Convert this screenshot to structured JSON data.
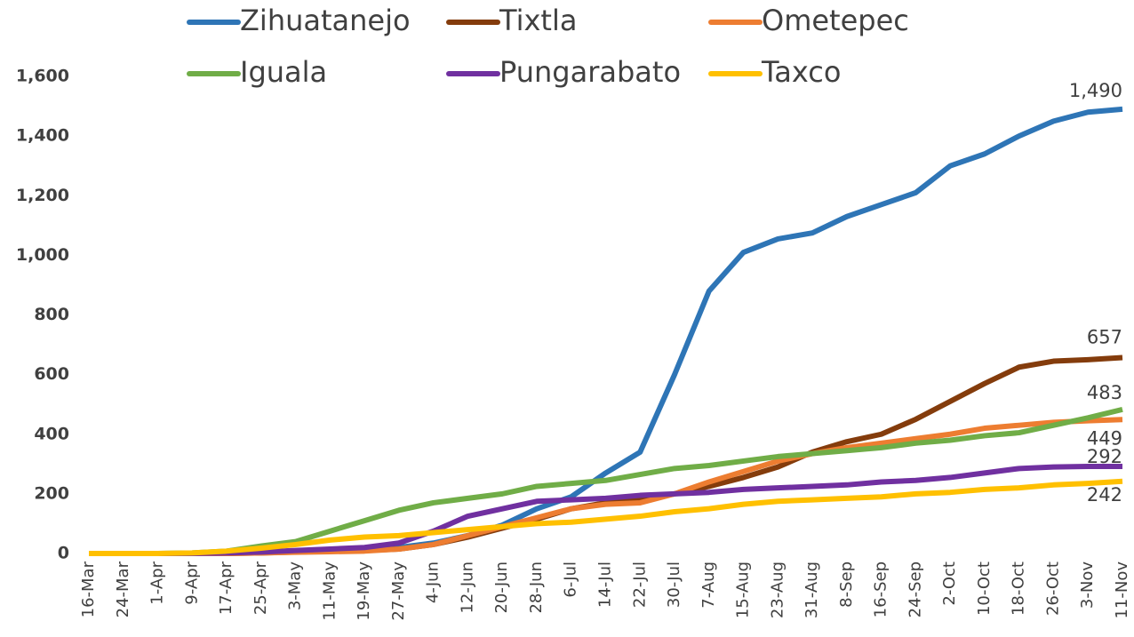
{
  "chart_data": {
    "type": "line",
    "categories": [
      "16-Mar",
      "24-Mar",
      "1-Apr",
      "9-Apr",
      "17-Apr",
      "25-Apr",
      "3-May",
      "11-May",
      "19-May",
      "27-May",
      "4-Jun",
      "12-Jun",
      "20-Jun",
      "28-Jun",
      "6-Jul",
      "14-Jul",
      "22-Jul",
      "30-Jul",
      "7-Aug",
      "15-Aug",
      "23-Aug",
      "31-Aug",
      "8-Sep",
      "16-Sep",
      "24-Sep",
      "2-Oct",
      "10-Oct",
      "18-Oct",
      "26-Oct",
      "3-Nov",
      "11-Nov"
    ],
    "series": [
      {
        "name": "Zihuatanejo",
        "color": "#2e75b6",
        "values": [
          0,
          0,
          0,
          0,
          2,
          5,
          8,
          10,
          15,
          20,
          35,
          60,
          95,
          150,
          190,
          270,
          340,
          600,
          880,
          1010,
          1055,
          1075,
          1130,
          1170,
          1210,
          1300,
          1340,
          1400,
          1450,
          1480,
          1490
        ],
        "value_labels": [
          null,
          null,
          null,
          null,
          null,
          null,
          null,
          null,
          null,
          null,
          null,
          null,
          null,
          null,
          null,
          null,
          null,
          null,
          null,
          null,
          null,
          null,
          null,
          null,
          null,
          null,
          null,
          null,
          null,
          null,
          "1,490"
        ]
      },
      {
        "name": "Tixtla",
        "color": "#843c0c",
        "values": [
          0,
          0,
          0,
          0,
          0,
          2,
          5,
          8,
          10,
          15,
          30,
          55,
          85,
          115,
          150,
          170,
          180,
          200,
          225,
          255,
          290,
          340,
          375,
          400,
          450,
          510,
          570,
          625,
          645,
          650,
          657
        ],
        "value_labels": [
          null,
          null,
          null,
          null,
          null,
          null,
          null,
          null,
          null,
          null,
          null,
          null,
          null,
          null,
          null,
          null,
          null,
          null,
          null,
          null,
          null,
          null,
          null,
          null,
          null,
          null,
          null,
          null,
          null,
          null,
          "657"
        ]
      },
      {
        "name": "Ometepec",
        "color": "#ed7d31",
        "values": [
          0,
          0,
          0,
          0,
          0,
          2,
          4,
          6,
          8,
          15,
          30,
          60,
          90,
          120,
          150,
          165,
          170,
          200,
          240,
          275,
          310,
          335,
          355,
          370,
          385,
          400,
          420,
          430,
          440,
          445,
          449
        ],
        "value_labels": [
          null,
          null,
          null,
          null,
          null,
          null,
          null,
          null,
          null,
          null,
          null,
          null,
          null,
          null,
          null,
          null,
          null,
          null,
          null,
          null,
          null,
          null,
          null,
          null,
          null,
          null,
          null,
          null,
          null,
          null,
          "449"
        ]
      },
      {
        "name": "Iguala",
        "color": "#70ad47",
        "values": [
          0,
          0,
          0,
          2,
          8,
          25,
          40,
          75,
          110,
          145,
          170,
          185,
          200,
          225,
          235,
          245,
          265,
          285,
          295,
          310,
          325,
          335,
          345,
          355,
          370,
          380,
          395,
          405,
          430,
          455,
          483
        ],
        "value_labels": [
          null,
          null,
          null,
          null,
          null,
          null,
          null,
          null,
          null,
          null,
          null,
          null,
          null,
          null,
          null,
          null,
          null,
          null,
          null,
          null,
          null,
          null,
          null,
          null,
          null,
          null,
          null,
          null,
          null,
          null,
          "483"
        ]
      },
      {
        "name": "Pungarabato",
        "color": "#7030a0",
        "values": [
          0,
          0,
          0,
          0,
          2,
          5,
          10,
          15,
          20,
          35,
          75,
          125,
          150,
          175,
          180,
          185,
          195,
          200,
          205,
          215,
          220,
          225,
          230,
          240,
          245,
          255,
          270,
          285,
          290,
          292,
          292
        ],
        "value_labels": [
          null,
          null,
          null,
          null,
          null,
          null,
          null,
          null,
          null,
          null,
          null,
          null,
          null,
          null,
          null,
          null,
          null,
          null,
          null,
          null,
          null,
          null,
          null,
          null,
          null,
          null,
          null,
          null,
          null,
          null,
          "292"
        ]
      },
      {
        "name": "Taxco",
        "color": "#ffc000",
        "values": [
          0,
          0,
          0,
          2,
          8,
          18,
          30,
          45,
          55,
          60,
          70,
          80,
          90,
          100,
          105,
          115,
          125,
          140,
          150,
          165,
          175,
          180,
          185,
          190,
          200,
          205,
          215,
          220,
          230,
          235,
          242
        ],
        "value_labels": [
          null,
          null,
          null,
          null,
          null,
          null,
          null,
          null,
          null,
          null,
          null,
          null,
          null,
          null,
          null,
          null,
          null,
          null,
          null,
          null,
          null,
          null,
          null,
          null,
          null,
          null,
          null,
          null,
          null,
          null,
          "242"
        ]
      }
    ],
    "ylim": [
      0,
      1600
    ],
    "yticks": [
      0,
      200,
      400,
      600,
      800,
      {
        "value": 1000,
        "label": "1,000"
      },
      {
        "value": 1200,
        "label": "1,200"
      },
      {
        "value": 1400,
        "label": "1,400"
      },
      {
        "value": 1600,
        "label": "1,600"
      }
    ],
    "grid": false,
    "legend": "top"
  }
}
